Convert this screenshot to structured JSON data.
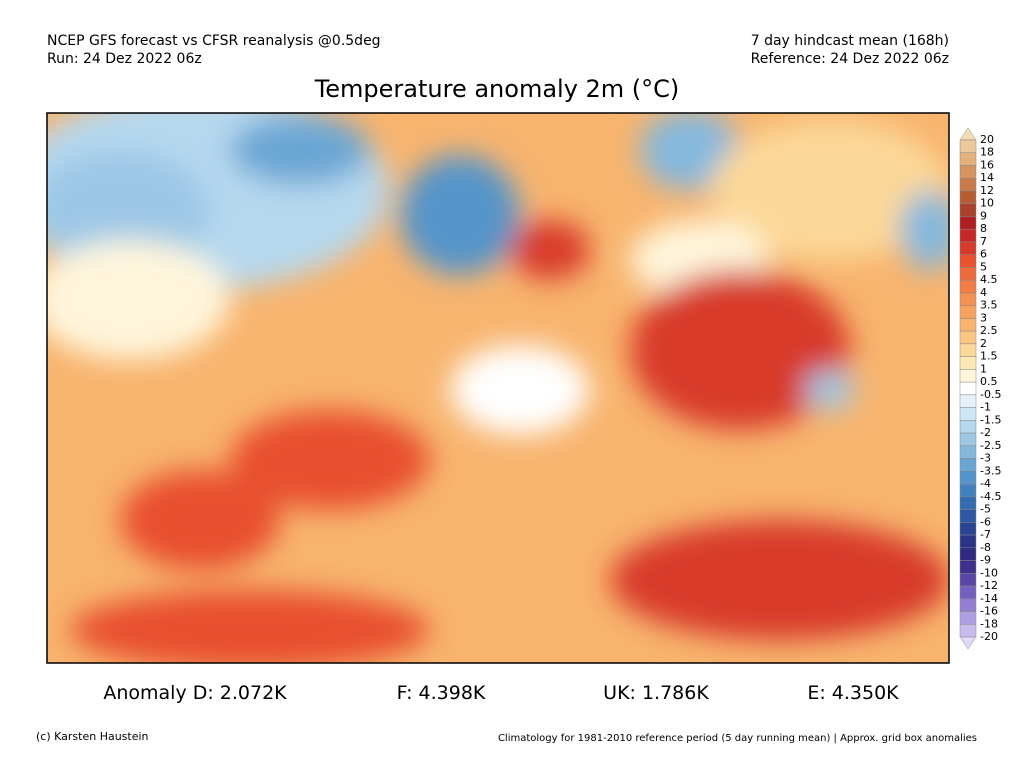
{
  "header": {
    "left": [
      "NCEP GFS forecast vs CFSR reanalysis @0.5deg",
      "Run: 24 Dez 2022 06z"
    ],
    "right": [
      "7 day hindcast mean (168h)",
      "Reference: 24 Dez 2022 06z"
    ],
    "title": "Temperature anomaly 2m (°C)"
  },
  "legend": {
    "labels": [
      "20",
      "18",
      "16",
      "14",
      "12",
      "10",
      "9",
      "8",
      "7",
      "6",
      "5",
      "4.5",
      "4",
      "3.5",
      "3",
      "2.5",
      "2",
      "1.5",
      "1",
      "0.5",
      "-0.5",
      "-1",
      "-1.5",
      "-2",
      "-2.5",
      "-3",
      "-3.5",
      "-4",
      "-4.5",
      "-5",
      "-6",
      "-7",
      "-8",
      "-9",
      "-10",
      "-12",
      "-14",
      "-16",
      "-18",
      "-20"
    ],
    "colors": [
      "#f2dcb4",
      "#ecc99a",
      "#e2b07a",
      "#d69460",
      "#c87a48",
      "#b85c34",
      "#a8402a",
      "#b01f1f",
      "#c62828",
      "#d83a2a",
      "#e8502e",
      "#ee6a3a",
      "#f27e45",
      "#f49050",
      "#f6a25e",
      "#f8b46e",
      "#fac682",
      "#fcd898",
      "#fde8b4",
      "#fff6dc",
      "#ffffff",
      "#e6f2fa",
      "#cfe6f4",
      "#b6d8ee",
      "#9cc8e6",
      "#84b8de",
      "#6aa6d4",
      "#5494ca",
      "#4280be",
      "#346cb2",
      "#2c58a4",
      "#2a4494",
      "#2c3488",
      "#302a80",
      "#40308e",
      "#5a46a6",
      "#7460be",
      "#927ed2",
      "#ae9ee2",
      "#c8bcee",
      "#e0d8f6"
    ]
  },
  "stats": [
    "Anomaly D: 2.072K",
    "F: 4.398K",
    "UK: 1.786K",
    "E: 4.350K"
  ],
  "footer": {
    "left": "(c) Karsten Haustein",
    "right": "Climatology for 1981-2010 reference period (5 day running mean) | Approx. grid box anomalies"
  }
}
